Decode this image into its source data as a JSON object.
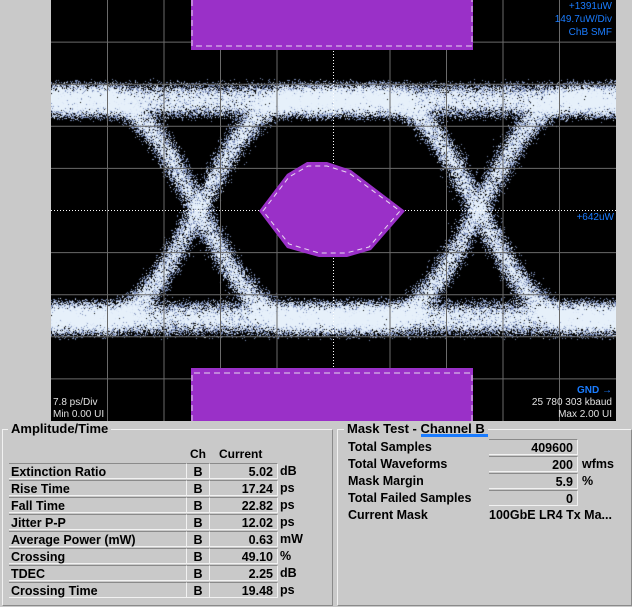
{
  "scope": {
    "top_readout": "+1391uW",
    "scale_readout": "149.7uW/Div",
    "channel_readout": "ChB  SMF",
    "center_readout": "+642uW",
    "time_scale": "7.8 ps/Div",
    "min_ui": "Min 0.00 UI",
    "ground_label": "GND →",
    "baud_rate": "25 780 303 kbaud",
    "max_ui": "Max 2.00 UI",
    "mask_color": "#9a30c8",
    "trace_color": "#9fb8e8"
  },
  "amplitude": {
    "title": "Amplitude/Time",
    "col_ch": "Ch",
    "col_current": "Current",
    "rows": [
      {
        "label": "Extinction Ratio",
        "ch": "B",
        "value": "5.02",
        "unit": "dB"
      },
      {
        "label": "Rise Time",
        "ch": "B",
        "value": "17.24",
        "unit": "ps"
      },
      {
        "label": "Fall Time",
        "ch": "B",
        "value": "22.82",
        "unit": "ps"
      },
      {
        "label": "Jitter P-P",
        "ch": "B",
        "value": "12.02",
        "unit": "ps"
      },
      {
        "label": "Average Power (mW)",
        "ch": "B",
        "value": "0.63",
        "unit": "mW"
      },
      {
        "label": "Crossing",
        "ch": "B",
        "value": "49.10",
        "unit": "%"
      },
      {
        "label": "TDEC",
        "ch": "B",
        "value": "2.25",
        "unit": "dB"
      },
      {
        "label": "Crossing Time",
        "ch": "B",
        "value": "19.48",
        "unit": "ps"
      }
    ]
  },
  "mask": {
    "title_prefix": "Mask Test - ",
    "title_channel": "Channel B",
    "rows": [
      {
        "label": "Total Samples",
        "value": "409600",
        "unit": ""
      },
      {
        "label": "Total Waveforms",
        "value": "200",
        "unit": "wfms"
      },
      {
        "label": "Mask Margin",
        "value": "5.9",
        "unit": "%"
      },
      {
        "label": "Total Failed Samples",
        "value": "0",
        "unit": ""
      }
    ],
    "current_mask_label": "Current Mask",
    "current_mask_value": "100GbE LR4 Tx Ma..."
  }
}
